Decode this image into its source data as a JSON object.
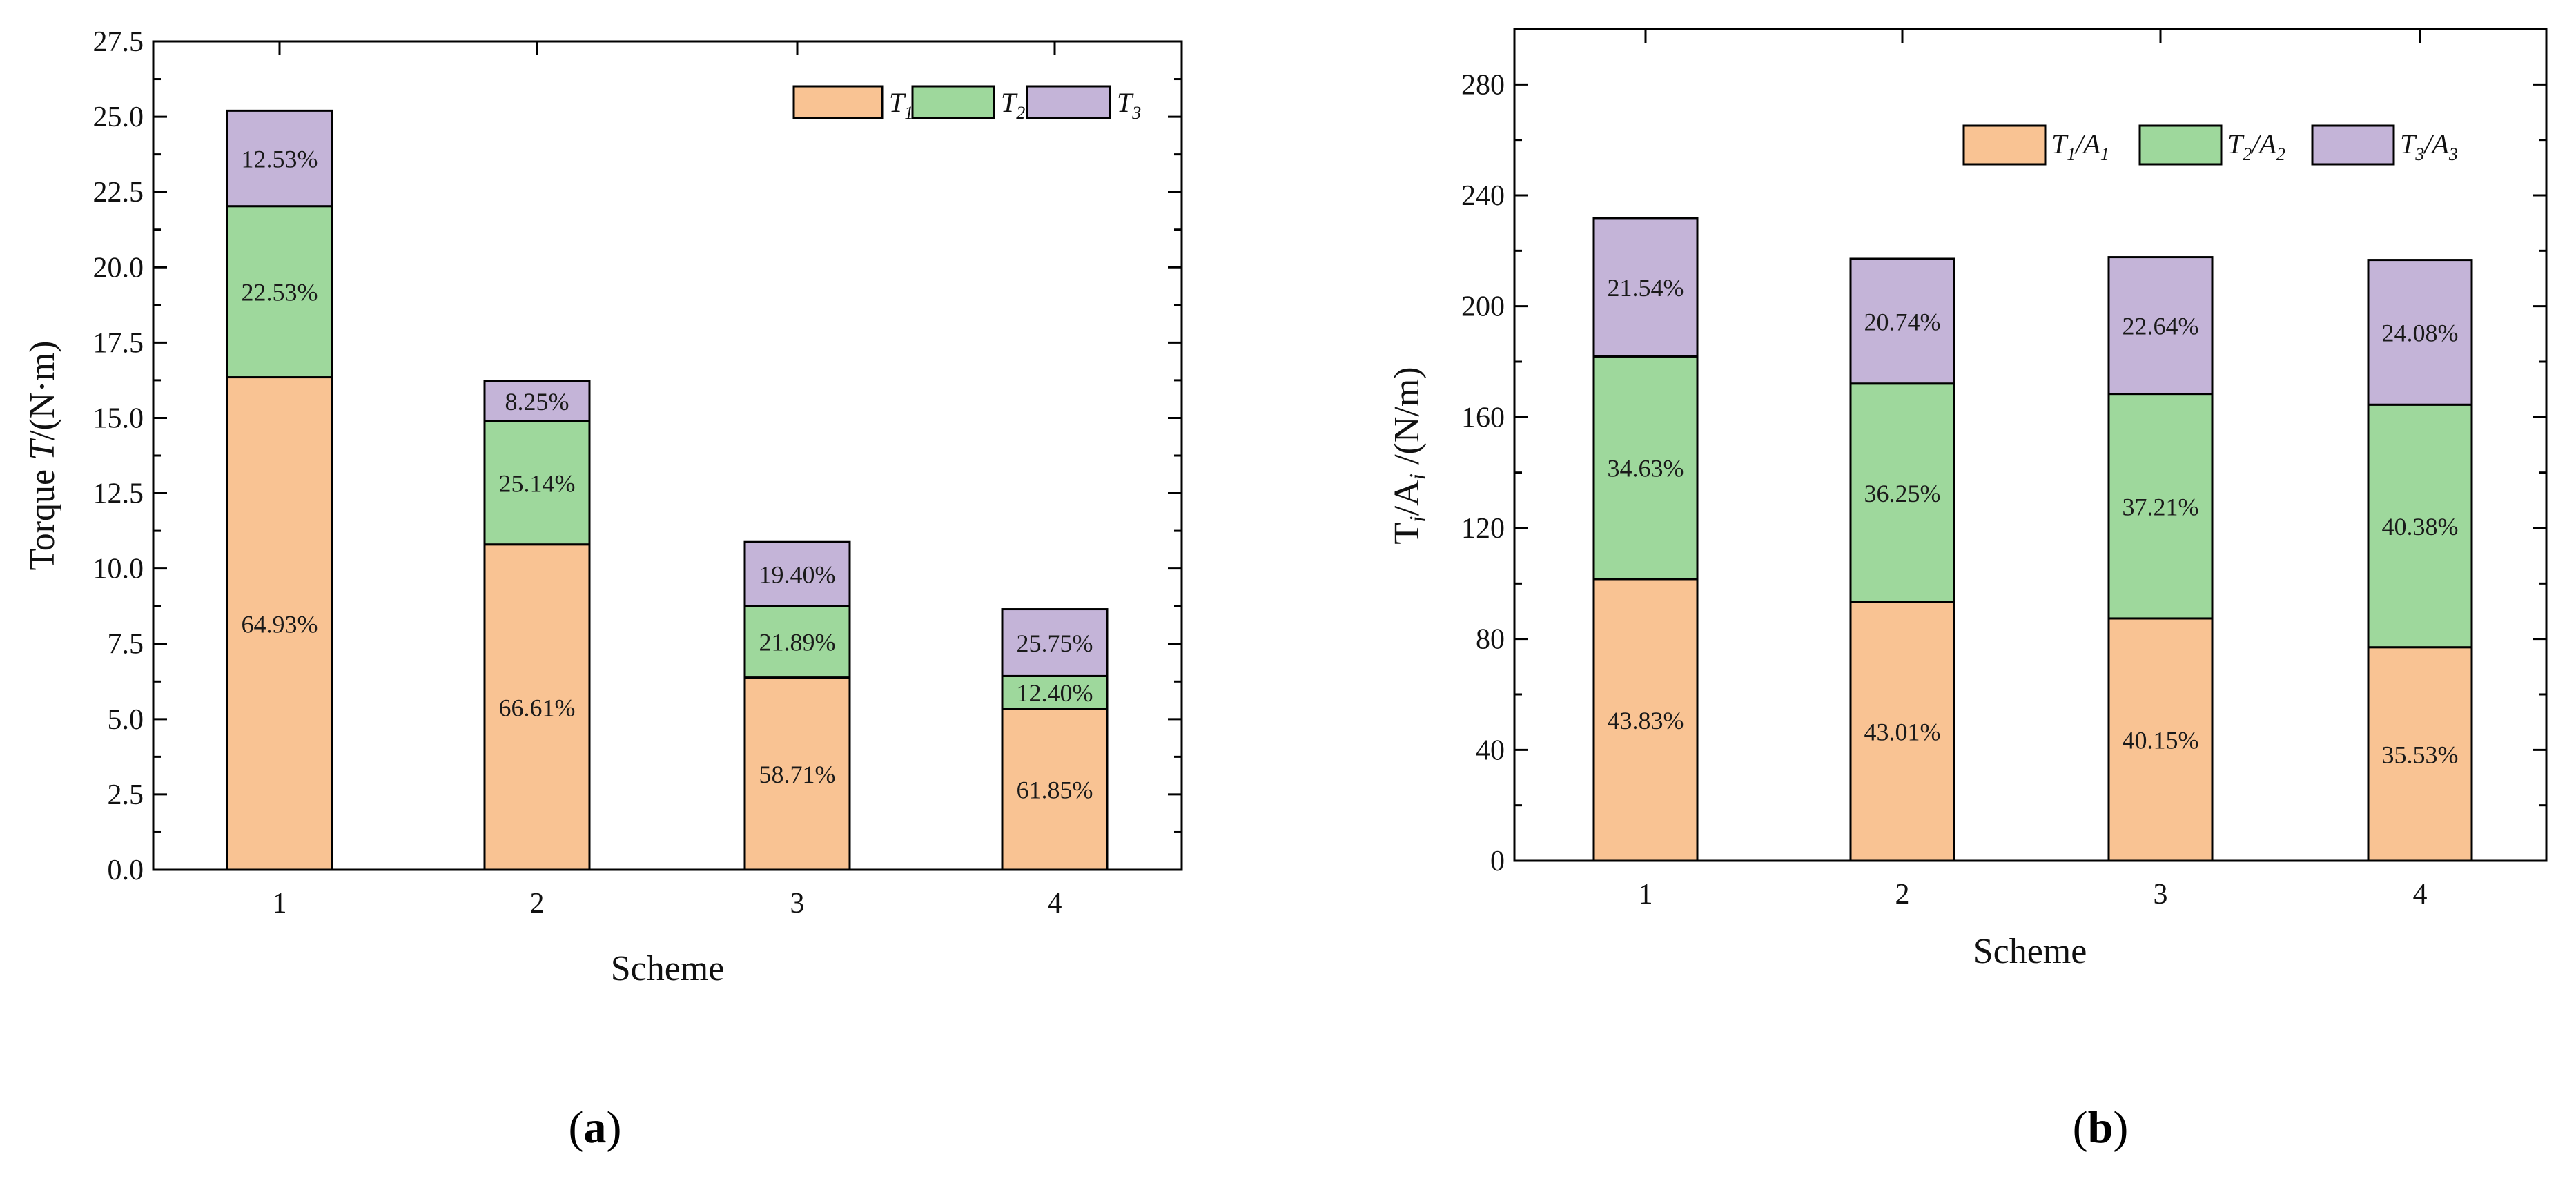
{
  "chart_data": [
    {
      "type": "bar",
      "stacked": true,
      "panel_label": "(a)",
      "panel_letter": "a",
      "xlabel": "Scheme",
      "ylabel_main": "Torque ",
      "ylabel_var": "T",
      "ylabel_unit": "/(N·m)",
      "ylim": [
        0,
        27.5
      ],
      "yticks": [
        "0.0",
        "2.5",
        "5.0",
        "7.5",
        "10.0",
        "12.5",
        "15.0",
        "17.5",
        "20.0",
        "22.5",
        "25.0",
        "27.5"
      ],
      "categories": [
        "1",
        "2",
        "3",
        "4"
      ],
      "legend_position": "top-right",
      "series": [
        {
          "name": "T1",
          "legend_base": "T",
          "legend_sub": "1",
          "color": "#f9c393",
          "values": [
            16.35,
            10.8,
            6.38,
            5.35
          ],
          "labels": [
            "64.93%",
            "66.61%",
            "58.71%",
            "61.85%"
          ]
        },
        {
          "name": "T2",
          "legend_base": "T",
          "legend_sub": "2",
          "color": "#9ed89c",
          "values": [
            5.68,
            4.1,
            2.38,
            1.08
          ],
          "labels": [
            "22.53%",
            "25.14%",
            "21.89%",
            "12.40%"
          ]
        },
        {
          "name": "T3",
          "legend_base": "T",
          "legend_sub": "3",
          "color": "#c4b4d8",
          "values": [
            3.17,
            1.32,
            2.12,
            2.22
          ],
          "labels": [
            "12.53%",
            "8.25%",
            "19.40%",
            "25.75%"
          ]
        }
      ]
    },
    {
      "type": "bar",
      "stacked": true,
      "panel_label": "(b)",
      "panel_letter": "b",
      "xlabel": "Scheme",
      "ylabel_main": "T",
      "ylabel_var": "A",
      "ylabel_unit": "/(N/m)",
      "ylim": [
        0,
        300
      ],
      "yticks": [
        "0",
        "40",
        "80",
        "120",
        "160",
        "200",
        "240",
        "280"
      ],
      "categories": [
        "1",
        "2",
        "3",
        "4"
      ],
      "legend_position": "top-right",
      "series": [
        {
          "name": "T1/A1",
          "legend_base": "T",
          "legend_sub": "1",
          "legend_base2": "A",
          "legend_sub2": "1",
          "color": "#f9c393",
          "values": [
            101.6,
            93.4,
            87.4,
            77.0
          ],
          "labels": [
            "43.83%",
            "43.01%",
            "40.15%",
            "35.53%"
          ]
        },
        {
          "name": "T2/A2",
          "legend_base": "T",
          "legend_sub": "2",
          "legend_base2": "A",
          "legend_sub2": "2",
          "color": "#9ed89c",
          "values": [
            80.3,
            78.7,
            81.0,
            87.5
          ],
          "labels": [
            "34.63%",
            "36.25%",
            "37.21%",
            "40.38%"
          ]
        },
        {
          "name": "T3/A3",
          "legend_base": "T",
          "legend_sub": "3",
          "legend_base2": "A",
          "legend_sub2": "3",
          "color": "#c4b4d8",
          "values": [
            49.9,
            45.0,
            49.3,
            52.2
          ],
          "labels": [
            "21.54%",
            "20.74%",
            "22.64%",
            "24.08%"
          ]
        }
      ]
    }
  ]
}
